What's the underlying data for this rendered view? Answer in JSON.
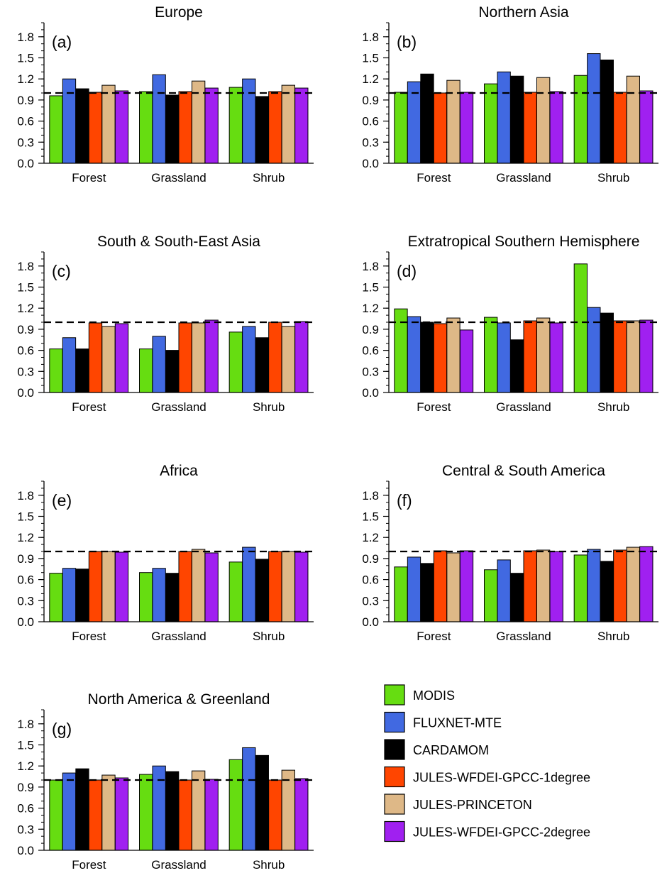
{
  "chart_data": [
    {
      "type": "bar",
      "panel_label": "(a)",
      "title": "Europe",
      "categories": [
        "Forest",
        "Grassland",
        "Shrub"
      ],
      "ylim": [
        0,
        2.0
      ],
      "yticks": [
        "0.0",
        "0.3",
        "0.6",
        "0.9",
        "1.2",
        "1.5",
        "1.8"
      ],
      "reference_line": 1.0,
      "series": [
        {
          "name": "MODIS",
          "values": [
            0.96,
            1.02,
            1.08
          ]
        },
        {
          "name": "FLUXNET-MTE",
          "values": [
            1.2,
            1.26,
            1.2
          ]
        },
        {
          "name": "CARDAMOM",
          "values": [
            1.06,
            0.97,
            0.95
          ]
        },
        {
          "name": "JULES-WFDEI-GPCC-1degree",
          "values": [
            1.01,
            1.02,
            1.02
          ]
        },
        {
          "name": "JULES-PRINCETON",
          "values": [
            1.11,
            1.17,
            1.11
          ]
        },
        {
          "name": "JULES-WFDEI-GPCC-2degree",
          "values": [
            1.03,
            1.07,
            1.07
          ]
        }
      ]
    },
    {
      "type": "bar",
      "panel_label": "(b)",
      "title": "Northern Asia",
      "categories": [
        "Forest",
        "Grassland",
        "Shrub"
      ],
      "ylim": [
        0,
        2.0
      ],
      "yticks": [
        "0.0",
        "0.3",
        "0.6",
        "0.9",
        "1.2",
        "1.5",
        "1.8"
      ],
      "reference_line": 1.0,
      "series": [
        {
          "name": "MODIS",
          "values": [
            1.01,
            1.13,
            1.25
          ]
        },
        {
          "name": "FLUXNET-MTE",
          "values": [
            1.16,
            1.3,
            1.56
          ]
        },
        {
          "name": "CARDAMOM",
          "values": [
            1.27,
            1.24,
            1.47
          ]
        },
        {
          "name": "JULES-WFDEI-GPCC-1degree",
          "values": [
            1.0,
            1.01,
            1.01
          ]
        },
        {
          "name": "JULES-PRINCETON",
          "values": [
            1.18,
            1.22,
            1.24
          ]
        },
        {
          "name": "JULES-WFDEI-GPCC-2degree",
          "values": [
            1.01,
            1.02,
            1.03
          ]
        }
      ]
    },
    {
      "type": "bar",
      "panel_label": "(c)",
      "title": "South & South-East Asia",
      "categories": [
        "Forest",
        "Grassland",
        "Shrub"
      ],
      "ylim": [
        0,
        2.0
      ],
      "yticks": [
        "0.0",
        "0.3",
        "0.6",
        "0.9",
        "1.2",
        "1.5",
        "1.8"
      ],
      "reference_line": 1.0,
      "series": [
        {
          "name": "MODIS",
          "values": [
            0.62,
            0.62,
            0.86
          ]
        },
        {
          "name": "FLUXNET-MTE",
          "values": [
            0.78,
            0.8,
            0.94
          ]
        },
        {
          "name": "CARDAMOM",
          "values": [
            0.62,
            0.6,
            0.78
          ]
        },
        {
          "name": "JULES-WFDEI-GPCC-1degree",
          "values": [
            0.99,
            0.99,
            1.0
          ]
        },
        {
          "name": "JULES-PRINCETON",
          "values": [
            0.94,
            0.99,
            0.94
          ]
        },
        {
          "name": "JULES-WFDEI-GPCC-2degree",
          "values": [
            0.98,
            1.03,
            1.01
          ]
        }
      ]
    },
    {
      "type": "bar",
      "panel_label": "(d)",
      "title": "Extratropical Southern Hemisphere",
      "categories": [
        "Forest",
        "Grassland",
        "Shrub"
      ],
      "ylim": [
        0,
        2.0
      ],
      "yticks": [
        "0.0",
        "0.3",
        "0.6",
        "0.9",
        "1.2",
        "1.5",
        "1.8"
      ],
      "reference_line": 1.0,
      "series": [
        {
          "name": "MODIS",
          "values": [
            1.19,
            1.07,
            1.83
          ]
        },
        {
          "name": "FLUXNET-MTE",
          "values": [
            1.08,
            0.99,
            1.21
          ]
        },
        {
          "name": "CARDAMOM",
          "values": [
            1.0,
            0.75,
            1.13
          ]
        },
        {
          "name": "JULES-WFDEI-GPCC-1degree",
          "values": [
            0.98,
            1.02,
            1.02
          ]
        },
        {
          "name": "JULES-PRINCETON",
          "values": [
            1.06,
            1.06,
            1.02
          ]
        },
        {
          "name": "JULES-WFDEI-GPCC-2degree",
          "values": [
            0.89,
            0.99,
            1.03
          ]
        }
      ]
    },
    {
      "type": "bar",
      "panel_label": "(e)",
      "title": "Africa",
      "categories": [
        "Forest",
        "Grassland",
        "Shrub"
      ],
      "ylim": [
        0,
        2.0
      ],
      "yticks": [
        "0.0",
        "0.3",
        "0.6",
        "0.9",
        "1.2",
        "1.5",
        "1.8"
      ],
      "reference_line": 1.0,
      "series": [
        {
          "name": "MODIS",
          "values": [
            0.69,
            0.7,
            0.85
          ]
        },
        {
          "name": "FLUXNET-MTE",
          "values": [
            0.76,
            0.76,
            1.06
          ]
        },
        {
          "name": "CARDAMOM",
          "values": [
            0.75,
            0.69,
            0.89
          ]
        },
        {
          "name": "JULES-WFDEI-GPCC-1degree",
          "values": [
            1.0,
            1.0,
            1.0
          ]
        },
        {
          "name": "JULES-PRINCETON",
          "values": [
            1.0,
            1.03,
            1.0
          ]
        },
        {
          "name": "JULES-WFDEI-GPCC-2degree",
          "values": [
            0.99,
            0.98,
            0.99
          ]
        }
      ]
    },
    {
      "type": "bar",
      "panel_label": "(f)",
      "title": "Central & South America",
      "categories": [
        "Forest",
        "Grassland",
        "Shrub"
      ],
      "ylim": [
        0,
        2.0
      ],
      "yticks": [
        "0.0",
        "0.3",
        "0.6",
        "0.9",
        "1.2",
        "1.5",
        "1.8"
      ],
      "reference_line": 1.0,
      "series": [
        {
          "name": "MODIS",
          "values": [
            0.78,
            0.74,
            0.95
          ]
        },
        {
          "name": "FLUXNET-MTE",
          "values": [
            0.92,
            0.88,
            1.03
          ]
        },
        {
          "name": "CARDAMOM",
          "values": [
            0.83,
            0.69,
            0.86
          ]
        },
        {
          "name": "JULES-WFDEI-GPCC-1degree",
          "values": [
            1.01,
            1.01,
            1.02
          ]
        },
        {
          "name": "JULES-PRINCETON",
          "values": [
            0.98,
            1.02,
            1.06
          ]
        },
        {
          "name": "JULES-WFDEI-GPCC-2degree",
          "values": [
            1.01,
            1.0,
            1.07
          ]
        }
      ]
    },
    {
      "type": "bar",
      "panel_label": "(g)",
      "title": "North America & Greenland",
      "categories": [
        "Forest",
        "Grassland",
        "Shrub"
      ],
      "ylim": [
        0,
        2.0
      ],
      "yticks": [
        "0.0",
        "0.3",
        "0.6",
        "0.9",
        "1.2",
        "1.5",
        "1.8"
      ],
      "reference_line": 1.0,
      "series": [
        {
          "name": "MODIS",
          "values": [
            1.0,
            1.08,
            1.29
          ]
        },
        {
          "name": "FLUXNET-MTE",
          "values": [
            1.1,
            1.2,
            1.46
          ]
        },
        {
          "name": "CARDAMOM",
          "values": [
            1.16,
            1.12,
            1.35
          ]
        },
        {
          "name": "JULES-WFDEI-GPCC-1degree",
          "values": [
            1.0,
            1.0,
            1.0
          ]
        },
        {
          "name": "JULES-PRINCETON",
          "values": [
            1.07,
            1.13,
            1.14
          ]
        },
        {
          "name": "JULES-WFDEI-GPCC-2degree",
          "values": [
            1.03,
            1.01,
            1.02
          ]
        }
      ]
    }
  ],
  "legend": [
    {
      "label": "MODIS",
      "color": "#66dd11"
    },
    {
      "label": "FLUXNET-MTE",
      "color": "#4169e1"
    },
    {
      "label": "CARDAMOM",
      "color": "#000000"
    },
    {
      "label": "JULES-WFDEI-GPCC-1degree",
      "color": "#ff4500"
    },
    {
      "label": "JULES-PRINCETON",
      "color": "#deb887"
    },
    {
      "label": "JULES-WFDEI-GPCC-2degree",
      "color": "#a020f0"
    }
  ]
}
